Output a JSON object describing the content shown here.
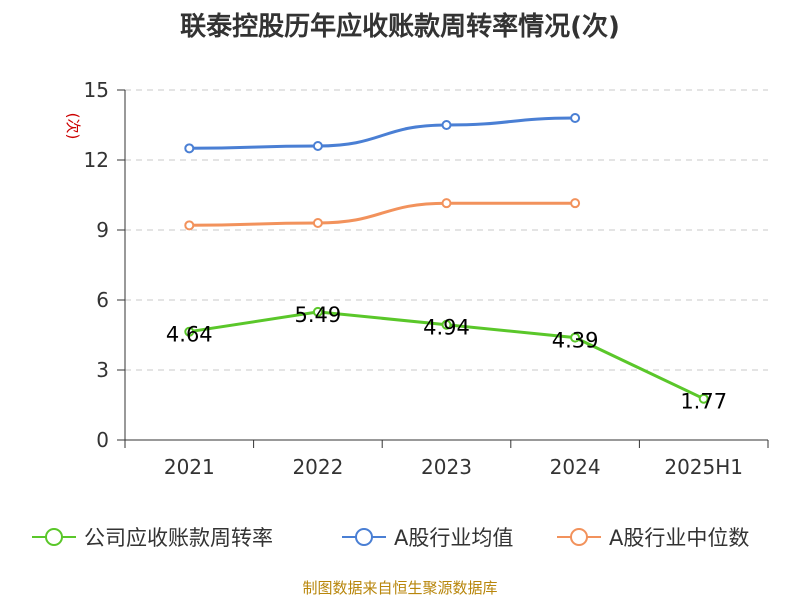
{
  "chart_data": {
    "type": "line",
    "title": "联泰控股历年应收账款周转率情况(次)",
    "ylabel": "(次)",
    "xlabel": "",
    "categories": [
      "2021",
      "2022",
      "2023",
      "2024",
      "2025H1"
    ],
    "ylim": [
      0,
      15
    ],
    "yticks": [
      0,
      3,
      6,
      9,
      12,
      15
    ],
    "grid": true,
    "legend_position": "bottom",
    "series": [
      {
        "name": "公司应收账款周转率",
        "color": "#5ac72a",
        "values": [
          4.64,
          5.49,
          4.94,
          4.39,
          1.77
        ],
        "data_labels": [
          "4.64",
          "5.49",
          "4.94",
          "4.39",
          "1.77"
        ]
      },
      {
        "name": "A股行业均值",
        "color": "#4a7fd4",
        "values": [
          12.5,
          12.6,
          13.5,
          13.8,
          null
        ]
      },
      {
        "name": "A股行业中位数",
        "color": "#f2925c",
        "values": [
          9.2,
          9.3,
          10.15,
          10.15,
          null
        ]
      }
    ]
  },
  "source": "制图数据来自恒生聚源数据库"
}
